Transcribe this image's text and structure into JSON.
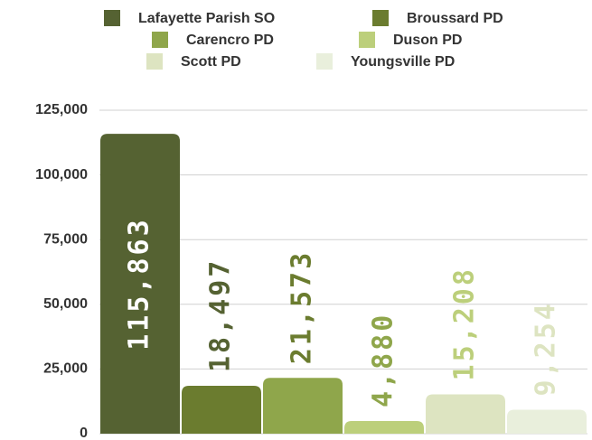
{
  "chart_data": {
    "type": "bar",
    "series": [
      {
        "name": "Lafayette Parish SO",
        "color": "#556232",
        "label_color": "#ffffff",
        "values": [
          115863
        ],
        "value_labels": [
          "115,863"
        ]
      },
      {
        "name": "Broussard PD",
        "color": "#6b7c2f",
        "label_color": "#556232",
        "values": [
          18497
        ],
        "value_labels": [
          "18,497"
        ]
      },
      {
        "name": "Carencro PD",
        "color": "#8fa64b",
        "label_color": "#6b7c2f",
        "values": [
          21573
        ],
        "value_labels": [
          "21,573"
        ]
      },
      {
        "name": "Duson PD",
        "color": "#bccf7b",
        "label_color": "#8fa64b",
        "values": [
          4880
        ],
        "value_labels": [
          "4,880"
        ]
      },
      {
        "name": "Scott PD",
        "color": "#dde4c1",
        "label_color": "#bccf7b",
        "values": [
          15208
        ],
        "value_labels": [
          "15,208"
        ]
      },
      {
        "name": "Youngsville PD",
        "color": "#e9efdc",
        "label_color": "#dde4c1",
        "values": [
          9254
        ],
        "value_labels": [
          "9,254"
        ]
      }
    ],
    "ylim": [
      0,
      125000
    ],
    "yticks": [
      0,
      {
        "value": 25000,
        "label": "25,000"
      },
      {
        "value": 50000,
        "label": "50,000"
      },
      {
        "value": 75000,
        "label": "75,000"
      },
      {
        "value": 100000,
        "label": "100,000"
      },
      {
        "value": 125000,
        "label": "125,000"
      }
    ],
    "grid": true
  }
}
